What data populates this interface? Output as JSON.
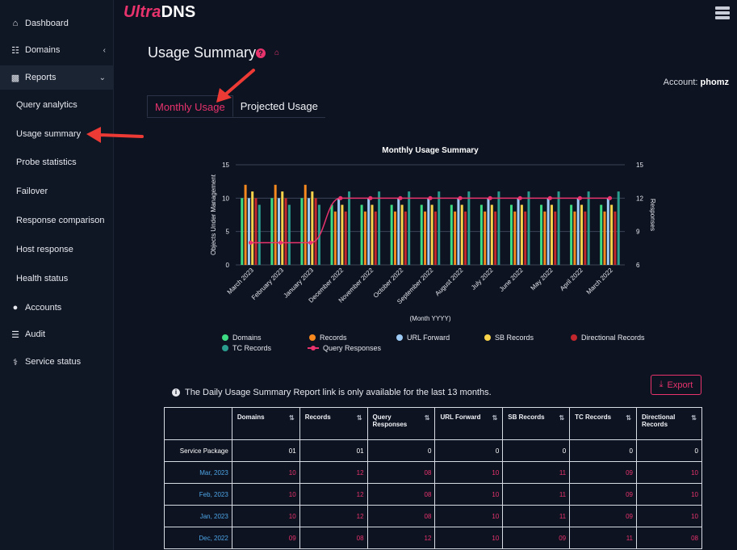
{
  "brand": {
    "part1": "Ultra",
    "part2": "DNS"
  },
  "sidebar": {
    "items": [
      {
        "label": "Dashboard",
        "icon": "home-icon"
      },
      {
        "label": "Domains",
        "icon": "sitemap-icon"
      },
      {
        "label": "Reports",
        "icon": "bar-chart-icon"
      },
      {
        "label": "Accounts",
        "icon": "user-icon"
      },
      {
        "label": "Audit",
        "icon": "list-icon"
      },
      {
        "label": "Service status",
        "icon": "stethoscope-icon"
      }
    ],
    "report_items": [
      "Query analytics",
      "Usage summary",
      "Probe statistics",
      "Failover",
      "Response comparison",
      "Host response",
      "Health status"
    ]
  },
  "header": {
    "title": "Usage Summary",
    "account_label": "Account:",
    "account_name": "phomz"
  },
  "tabs": [
    {
      "label": "Monthly Usage"
    },
    {
      "label": "Projected Usage"
    }
  ],
  "chart_data": {
    "type": "bar",
    "title": "Monthly Usage Summary",
    "xlabel": "(Month YYYY)",
    "ylabel": "Objects Under Management",
    "y2label": "Responses",
    "ylim": [
      0,
      15
    ],
    "y2lim": [
      6,
      15
    ],
    "yticks": [
      0,
      5,
      10,
      15
    ],
    "y2ticks": [
      6,
      9,
      12,
      15
    ],
    "categories": [
      "March 2023",
      "February 2023",
      "January 2023",
      "December 2022",
      "November 2022",
      "October 2022",
      "September 2022",
      "August 2022",
      "July 2022",
      "June 2022",
      "May 2022",
      "April 2022",
      "March 2022"
    ],
    "series": [
      {
        "name": "Domains",
        "color": "#3ddc84",
        "values": [
          10,
          10,
          10,
          9,
          9,
          9,
          9,
          9,
          9,
          9,
          9,
          9,
          9
        ]
      },
      {
        "name": "Records",
        "color": "#f7891f",
        "values": [
          12,
          12,
          12,
          8,
          8,
          8,
          8,
          8,
          8,
          8,
          8,
          8,
          8
        ]
      },
      {
        "name": "URL Forward",
        "color": "#9ecbf5",
        "values": [
          10,
          10,
          10,
          10,
          10,
          10,
          10,
          10,
          10,
          10,
          10,
          10,
          10
        ]
      },
      {
        "name": "SB Records",
        "color": "#f9d44a",
        "values": [
          11,
          11,
          11,
          9,
          9,
          9,
          9,
          9,
          9,
          9,
          9,
          9,
          9
        ]
      },
      {
        "name": "Directional Records",
        "color": "#c1272d",
        "values": [
          10,
          10,
          10,
          8,
          8,
          8,
          8,
          8,
          8,
          8,
          8,
          8,
          8
        ]
      },
      {
        "name": "TC Records",
        "color": "#2a9d8f",
        "values": [
          9,
          9,
          9,
          11,
          11,
          11,
          11,
          11,
          11,
          11,
          11,
          11,
          11
        ]
      }
    ],
    "line": {
      "name": "Query Responses",
      "color": "#e8336d",
      "axis": "right",
      "values": [
        8,
        8,
        8,
        12,
        12,
        12,
        12,
        12,
        12,
        12,
        12,
        12,
        12
      ]
    }
  },
  "info_text": "The Daily Usage Summary Report link is only available for the last 13 months.",
  "export_label": "Export",
  "table": {
    "headers": [
      "",
      "Domains",
      "Records",
      "Query Responses",
      "URL Forward",
      "SB Records",
      "TC Records",
      "Directional Records"
    ],
    "rows": [
      [
        "Service Package",
        "01",
        "01",
        "0",
        "0",
        "0",
        "0",
        "0"
      ],
      [
        "Mar, 2023",
        "10",
        "12",
        "08",
        "10",
        "11",
        "09",
        "10"
      ],
      [
        "Feb, 2023",
        "10",
        "12",
        "08",
        "10",
        "11",
        "09",
        "10"
      ],
      [
        "Jan, 2023",
        "10",
        "12",
        "08",
        "10",
        "11",
        "09",
        "10"
      ],
      [
        "Dec, 2022",
        "09",
        "08",
        "12",
        "10",
        "09",
        "11",
        "08"
      ]
    ]
  }
}
